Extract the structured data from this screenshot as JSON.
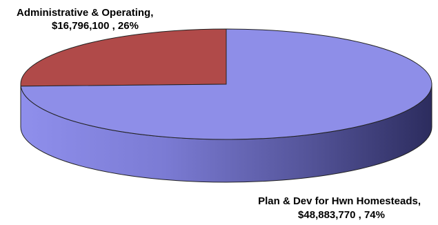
{
  "chart_data": {
    "type": "pie",
    "style": "3d",
    "slices": [
      {
        "label": "Administrative & Operating",
        "value": 16796100,
        "percent": 26,
        "label_line1": "Administrative & Operating,",
        "label_line2": "$16,796,100 , 26%",
        "top_color": "#b04a49",
        "side_color": "#7a2f2e"
      },
      {
        "label": "Plan & Dev for Hwn Homesteads",
        "value": 48883770,
        "percent": 74,
        "label_line1": "Plan & Dev for Hwn Homesteads,",
        "label_line2": "$48,883,770 , 74%",
        "top_color": "#8e8ee8",
        "side_color": "#5f5fb8"
      }
    ]
  }
}
